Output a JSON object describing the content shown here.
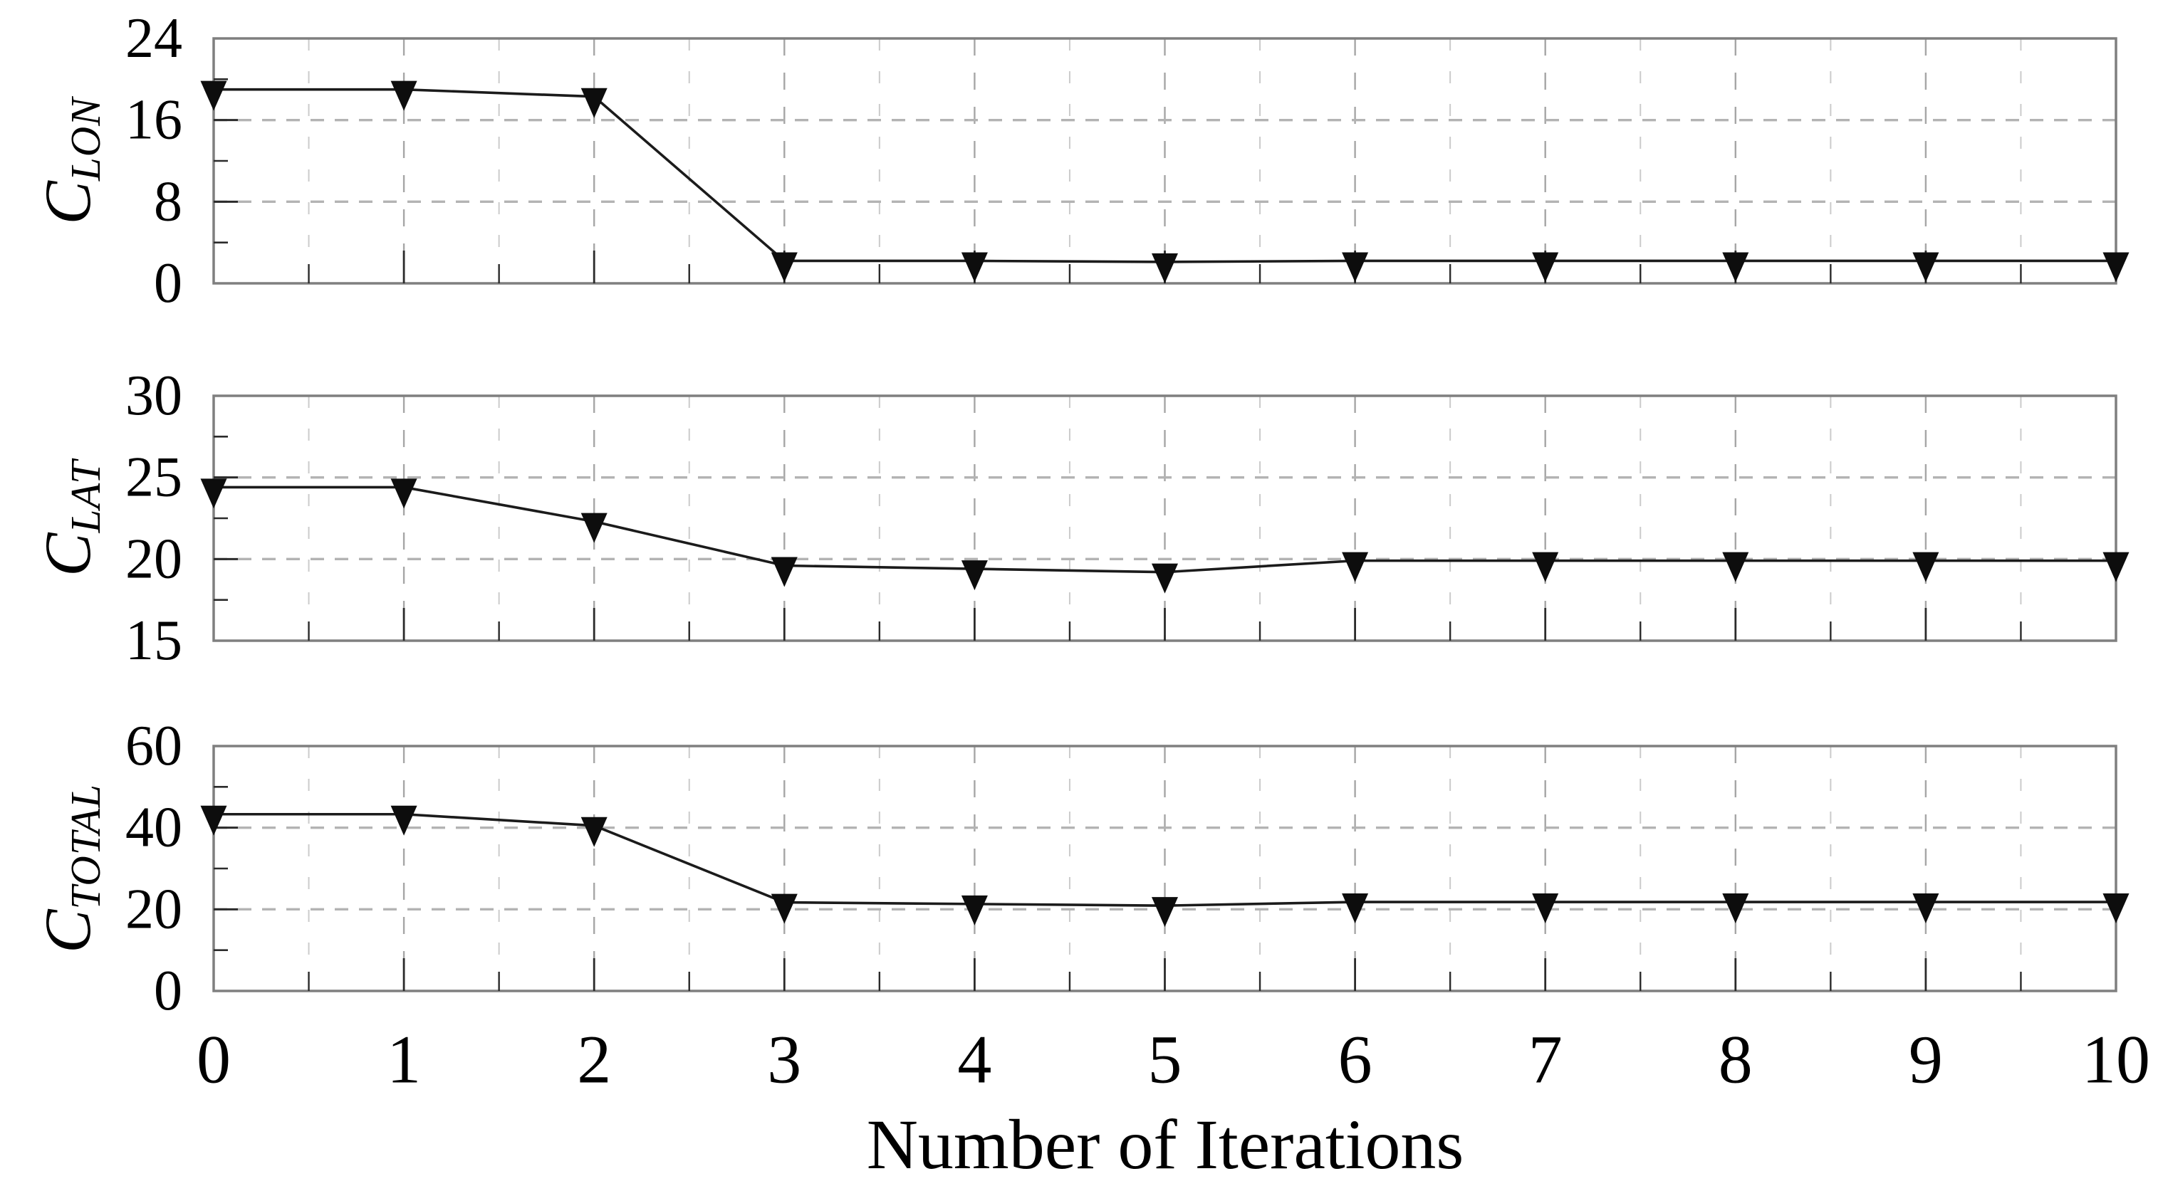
{
  "figure": {
    "xlabel": "Number of Iterations",
    "x_ticks": [
      "0",
      "1",
      "2",
      "3",
      "4",
      "5",
      "6",
      "7",
      "8",
      "9",
      "10"
    ],
    "xlim": [
      0,
      10
    ],
    "x_minor_step": 0.5,
    "grid_style": "dashed",
    "line_color": "#1b1b1b",
    "marker": "triangle-down",
    "marker_color": "#0d0d0d",
    "spine_color": "#7f7f7f",
    "tick_color": "#2b2b2b",
    "h_grid_color": "#b3b3b3",
    "v_grid_major_color": "#a6a6a6",
    "v_grid_minor_color": "#cbcbcb",
    "text_color": "#000000",
    "background": "#ffffff"
  },
  "chart_data": [
    {
      "type": "line",
      "series_label": "C_LON",
      "ylabel_main": "C",
      "ylabel_sub": "LON",
      "ylim": [
        0,
        24
      ],
      "yticks": [
        24,
        16,
        8,
        0
      ],
      "grid_y": [
        16,
        8
      ],
      "minor_yticks": [
        20,
        12,
        4
      ],
      "x": [
        0,
        1,
        2,
        3,
        4,
        5,
        6,
        7,
        8,
        9,
        10
      ],
      "values": [
        19.0,
        19.0,
        18.3,
        2.2,
        2.2,
        2.1,
        2.2,
        2.2,
        2.2,
        2.2,
        2.2
      ]
    },
    {
      "type": "line",
      "series_label": "C_LAT",
      "ylabel_main": "C",
      "ylabel_sub": "LAT",
      "ylim": [
        15,
        30
      ],
      "yticks": [
        30,
        25,
        20,
        15
      ],
      "grid_y": [
        25,
        20
      ],
      "minor_yticks": [
        27.5,
        22.5,
        17.5
      ],
      "x": [
        0,
        1,
        2,
        3,
        4,
        5,
        6,
        7,
        8,
        9,
        10
      ],
      "values": [
        24.4,
        24.4,
        22.3,
        19.6,
        19.4,
        19.2,
        19.9,
        19.9,
        19.9,
        19.9,
        19.9
      ]
    },
    {
      "type": "line",
      "series_label": "C_TOTAL",
      "ylabel_main": "C",
      "ylabel_sub": "TOTAL",
      "ylim": [
        0,
        60
      ],
      "yticks": [
        60,
        40,
        20,
        0
      ],
      "grid_y": [
        40,
        20
      ],
      "minor_yticks": [
        50,
        30,
        10
      ],
      "x": [
        0,
        1,
        2,
        3,
        4,
        5,
        6,
        7,
        8,
        9,
        10
      ],
      "values": [
        43.3,
        43.3,
        40.5,
        21.7,
        21.3,
        20.9,
        21.8,
        21.8,
        21.8,
        21.8,
        21.8
      ]
    }
  ]
}
